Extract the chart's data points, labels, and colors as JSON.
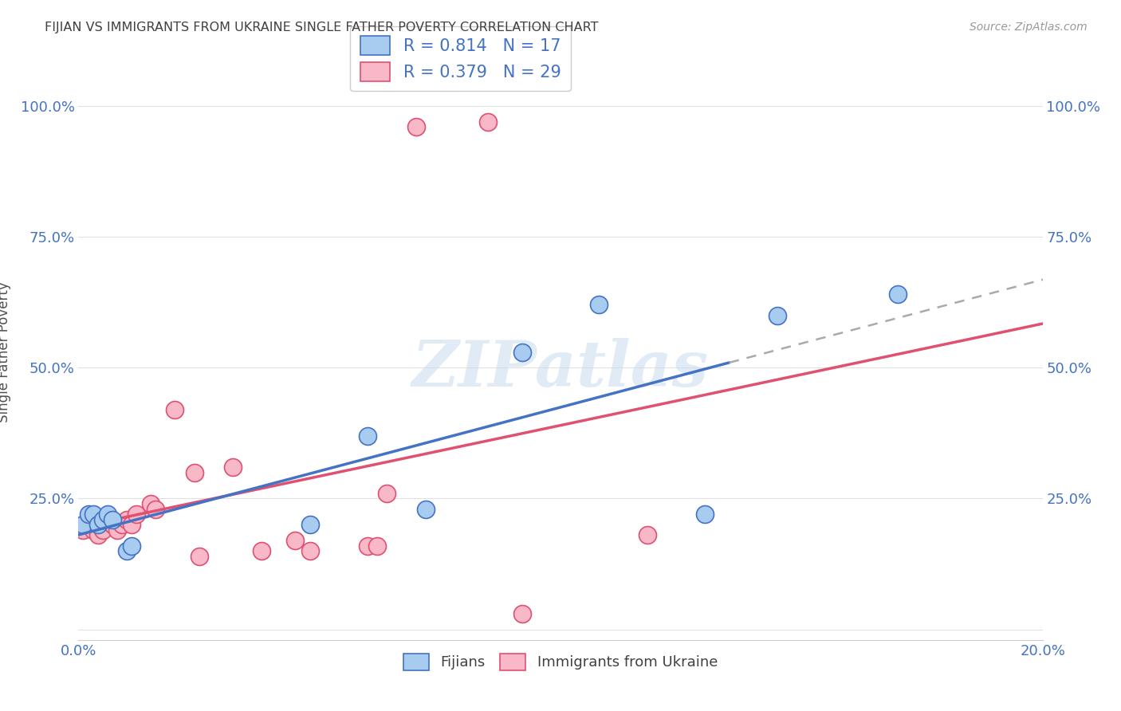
{
  "title": "FIJIAN VS IMMIGRANTS FROM UKRAINE SINGLE FATHER POVERTY CORRELATION CHART",
  "source": "Source: ZipAtlas.com",
  "ylabel": "Single Father Poverty",
  "x_min": 0.0,
  "x_max": 0.2,
  "y_min": -0.02,
  "y_max": 1.08,
  "x_ticks": [
    0.0,
    0.04,
    0.08,
    0.12,
    0.16,
    0.2
  ],
  "x_tick_labels": [
    "0.0%",
    "",
    "",
    "",
    "",
    "20.0%"
  ],
  "y_ticks": [
    0.0,
    0.25,
    0.5,
    0.75,
    1.0
  ],
  "y_tick_labels": [
    "",
    "25.0%",
    "50.0%",
    "75.0%",
    "100.0%"
  ],
  "fijians_x": [
    0.001,
    0.002,
    0.003,
    0.004,
    0.005,
    0.006,
    0.007,
    0.01,
    0.011,
    0.048,
    0.06,
    0.072,
    0.092,
    0.108,
    0.13,
    0.145,
    0.17
  ],
  "fijians_y": [
    0.2,
    0.22,
    0.22,
    0.2,
    0.21,
    0.22,
    0.21,
    0.15,
    0.16,
    0.2,
    0.37,
    0.23,
    0.53,
    0.62,
    0.22,
    0.6,
    0.64
  ],
  "ukraine_x": [
    0.001,
    0.002,
    0.003,
    0.003,
    0.004,
    0.005,
    0.006,
    0.007,
    0.008,
    0.009,
    0.01,
    0.011,
    0.012,
    0.015,
    0.016,
    0.02,
    0.024,
    0.032,
    0.038,
    0.045,
    0.048,
    0.06,
    0.062,
    0.064,
    0.07,
    0.085,
    0.092,
    0.118,
    0.025
  ],
  "ukraine_y": [
    0.19,
    0.2,
    0.19,
    0.2,
    0.18,
    0.19,
    0.21,
    0.2,
    0.19,
    0.2,
    0.21,
    0.2,
    0.22,
    0.24,
    0.23,
    0.42,
    0.3,
    0.31,
    0.15,
    0.17,
    0.15,
    0.16,
    0.16,
    0.26,
    0.96,
    0.97,
    0.03,
    0.18,
    0.14
  ],
  "fijians_color": "#A8CCF0",
  "ukraine_color": "#F8B8C8",
  "fijians_edge_color": "#4472C4",
  "ukraine_edge_color": "#E05070",
  "fijians_line_color": "#4472C4",
  "ukraine_line_color": "#E05070",
  "dashed_line_color": "#AAAAAA",
  "R_fijian": "0.814",
  "N_fijian": "17",
  "R_ukraine": "0.379",
  "N_ukraine": "29",
  "background_color": "#FFFFFF",
  "grid_color": "#E0E0E0",
  "title_color": "#404040",
  "axis_tick_color": "#4472C4",
  "ylabel_color": "#505050",
  "watermark_text": "ZIPatlas",
  "watermark_color": "#C8DCF0",
  "watermark_alpha": 0.55
}
